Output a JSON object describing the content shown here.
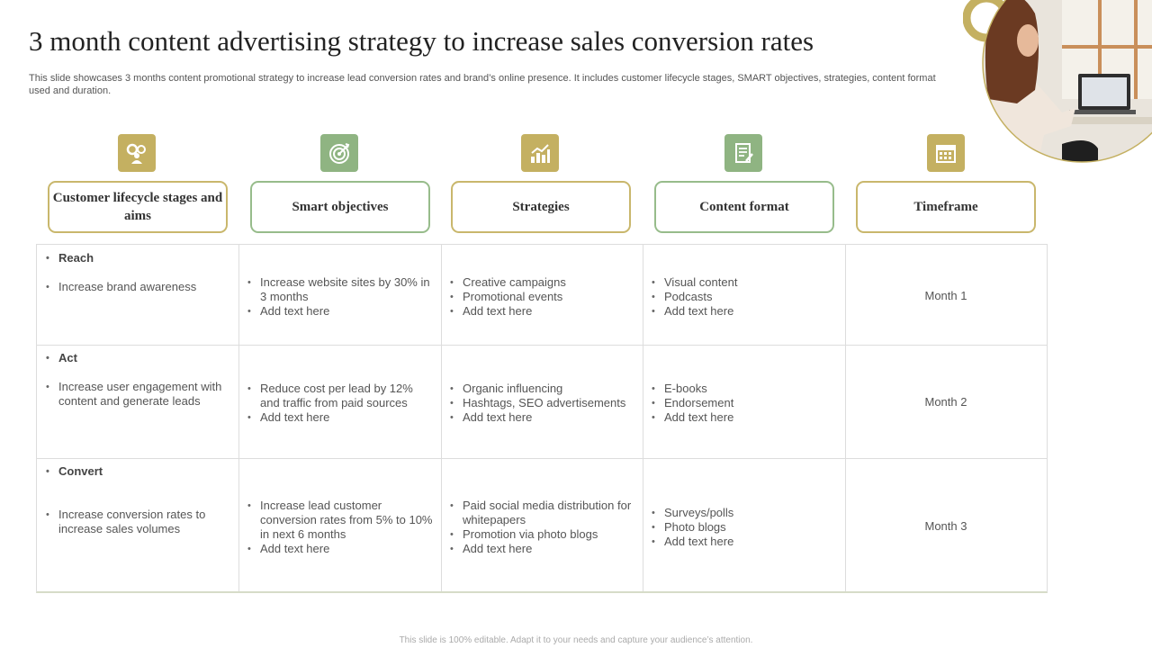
{
  "title": "3 month content advertising strategy to increase sales conversion rates",
  "subtitle": "This slide showcases 3 months content promotional strategy to increase lead conversion rates and brand’s online presence. It includes customer lifecycle stages, SMART objectives, strategies, content format used and duration.",
  "headers": [
    {
      "label": "Customer lifecycle stages and aims",
      "icon": "gears-user-icon"
    },
    {
      "label": "Smart objectives",
      "icon": "target-icon"
    },
    {
      "label": "Strategies",
      "icon": "growth-chart-icon"
    },
    {
      "label": "Content format",
      "icon": "document-icon"
    },
    {
      "label": "Timeframe",
      "icon": "calendar-icon"
    }
  ],
  "rows": [
    {
      "stage": "Reach",
      "aim": "Increase brand awareness",
      "objectives": [
        "Increase website sites by 30% in 3 months",
        "Add text here"
      ],
      "strategies": [
        "Creative campaigns",
        "Promotional events",
        "Add text here"
      ],
      "formats": [
        "Visual content",
        "Podcasts",
        "Add text here"
      ],
      "timeframe": "Month 1"
    },
    {
      "stage": "Act",
      "aim": "Increase user engagement with content and generate leads",
      "objectives": [
        "Reduce cost per lead by 12% and traffic from paid sources",
        "Add text here"
      ],
      "strategies": [
        "Organic influencing",
        "Hashtags, SEO advertisements",
        "Add text here"
      ],
      "formats": [
        "E-books",
        "Endorsement",
        "Add text here"
      ],
      "timeframe": "Month 2"
    },
    {
      "stage": "Convert",
      "aim": "Increase conversion rates to increase sales volumes",
      "objectives": [
        "Increase lead customer conversion rates from 5% to 10% in next 6 months",
        "Add text here"
      ],
      "strategies": [
        "Paid social media distribution for whitepapers",
        "Promotion via photo blogs",
        "Add text here"
      ],
      "formats": [
        "Surveys/polls",
        "Photo blogs",
        "Add text here"
      ],
      "timeframe": "Month 3"
    }
  ],
  "footer": "This slide is 100% editable. Adapt it to your needs and capture your audience’s attention.",
  "colors": {
    "gold": "#c4b061",
    "green": "#8fb482"
  }
}
